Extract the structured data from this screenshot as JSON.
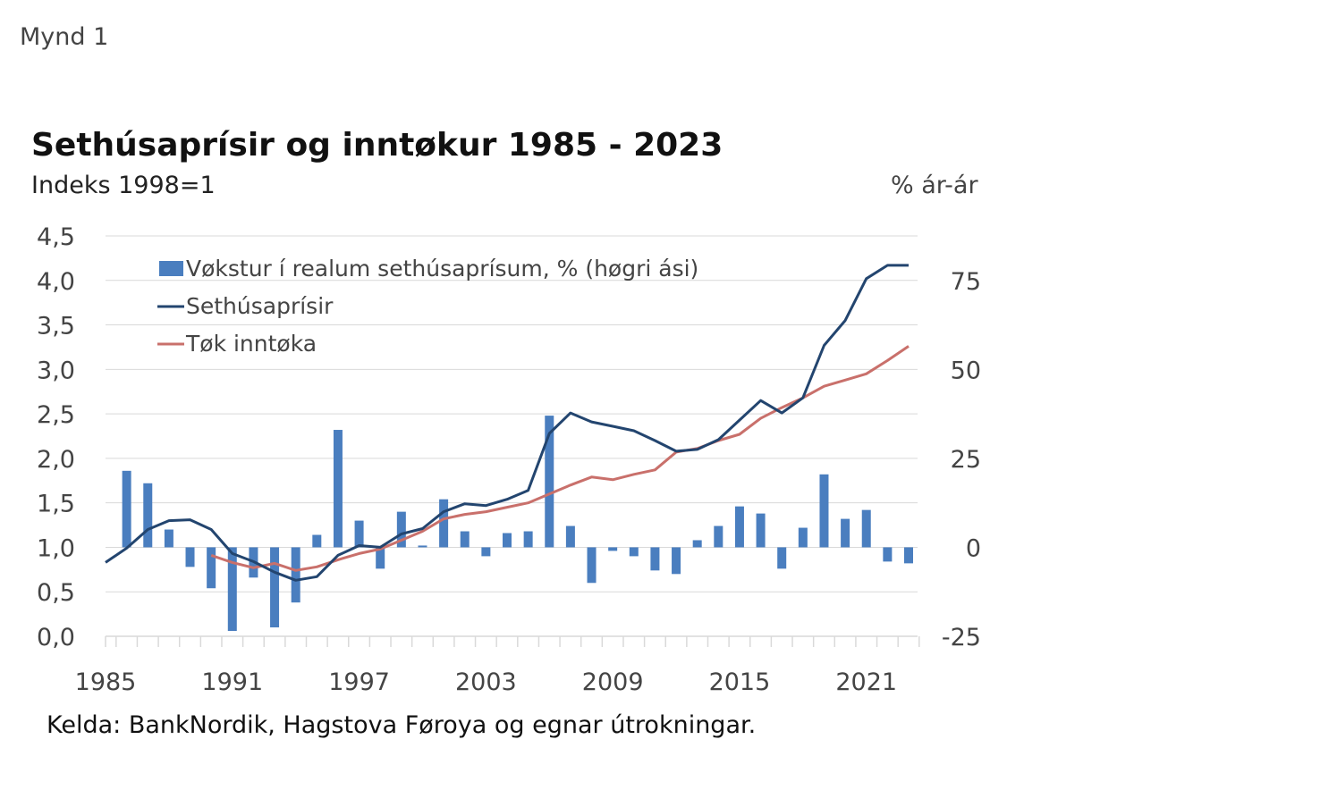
{
  "figure_label": "Mynd 1",
  "source": "Kelda: BankNordik, Hagstova Føroya og egnar útrokningar.",
  "colors": {
    "bars": "#4a7ebf",
    "house_price": "#23456f",
    "income": "#c9706b",
    "grid": "#d9d9d9"
  },
  "chart_data": {
    "type": "bar",
    "title": "Sethúsaprísir og inntøkur 1985 - 2023",
    "ylabel": "Indeks 1998=1",
    "y2label": "% ár-ár",
    "legend": "top-left",
    "grid": true,
    "ylim": [
      0,
      4.5
    ],
    "y2lim": [
      -25,
      87.5
    ],
    "yticks": [
      "0,0",
      "0,5",
      "1,0",
      "1,5",
      "2,0",
      "2,5",
      "3,0",
      "3,5",
      "4,0",
      "4,5"
    ],
    "y2ticks": [
      "-25",
      "0",
      "25",
      "50",
      "75"
    ],
    "xticks": [
      "1985",
      "1991",
      "1997",
      "2003",
      "2009",
      "2015",
      "2021"
    ],
    "x": [
      1985,
      1986,
      1987,
      1988,
      1989,
      1990,
      1991,
      1992,
      1993,
      1994,
      1995,
      1996,
      1997,
      1998,
      1999,
      2000,
      2001,
      2002,
      2003,
      2004,
      2005,
      2006,
      2007,
      2008,
      2009,
      2010,
      2011,
      2012,
      2013,
      2014,
      2015,
      2016,
      2017,
      2018,
      2019,
      2020,
      2021,
      2022,
      2023
    ],
    "series": [
      {
        "name": "Vøkstur í realum sethúsaprísum, % (høgri ási)",
        "type": "bar",
        "axis": "right",
        "values": [
          null,
          21.5,
          18,
          5,
          -5.5,
          -11.5,
          -23.5,
          -8.5,
          -22.5,
          -15.5,
          3.5,
          33,
          7.5,
          -6,
          10,
          0.5,
          13.5,
          4.5,
          -2.5,
          4,
          4.5,
          37,
          6,
          -10,
          -1,
          -2.5,
          -6.5,
          -7.5,
          2,
          6,
          11.5,
          9.5,
          -6,
          5.5,
          20.5,
          8,
          10.5,
          -4,
          -4.5
        ]
      },
      {
        "name": "Sethúsaprísir",
        "type": "line",
        "axis": "left",
        "values": [
          0.83,
          0.99,
          1.2,
          1.3,
          1.31,
          1.2,
          0.93,
          0.84,
          0.72,
          0.63,
          0.67,
          0.91,
          1.02,
          1.0,
          1.15,
          1.21,
          1.4,
          1.49,
          1.47,
          1.54,
          1.64,
          2.28,
          2.51,
          2.41,
          2.36,
          2.31,
          2.2,
          2.08,
          2.1,
          2.21,
          2.43,
          2.65,
          2.51,
          2.68,
          3.27,
          3.55,
          4.02,
          4.17,
          4.17
        ]
      },
      {
        "name": "Tøk inntøka",
        "type": "line",
        "axis": "left",
        "values": [
          null,
          null,
          null,
          null,
          null,
          0.91,
          0.83,
          0.77,
          0.82,
          0.74,
          0.78,
          0.86,
          0.93,
          0.98,
          1.08,
          1.18,
          1.32,
          1.37,
          1.4,
          1.45,
          1.5,
          1.6,
          1.7,
          1.79,
          1.76,
          1.82,
          1.87,
          2.07,
          2.11,
          2.2,
          2.27,
          2.45,
          2.57,
          2.68,
          2.81,
          2.88,
          2.95,
          3.1,
          3.26
        ]
      }
    ]
  }
}
